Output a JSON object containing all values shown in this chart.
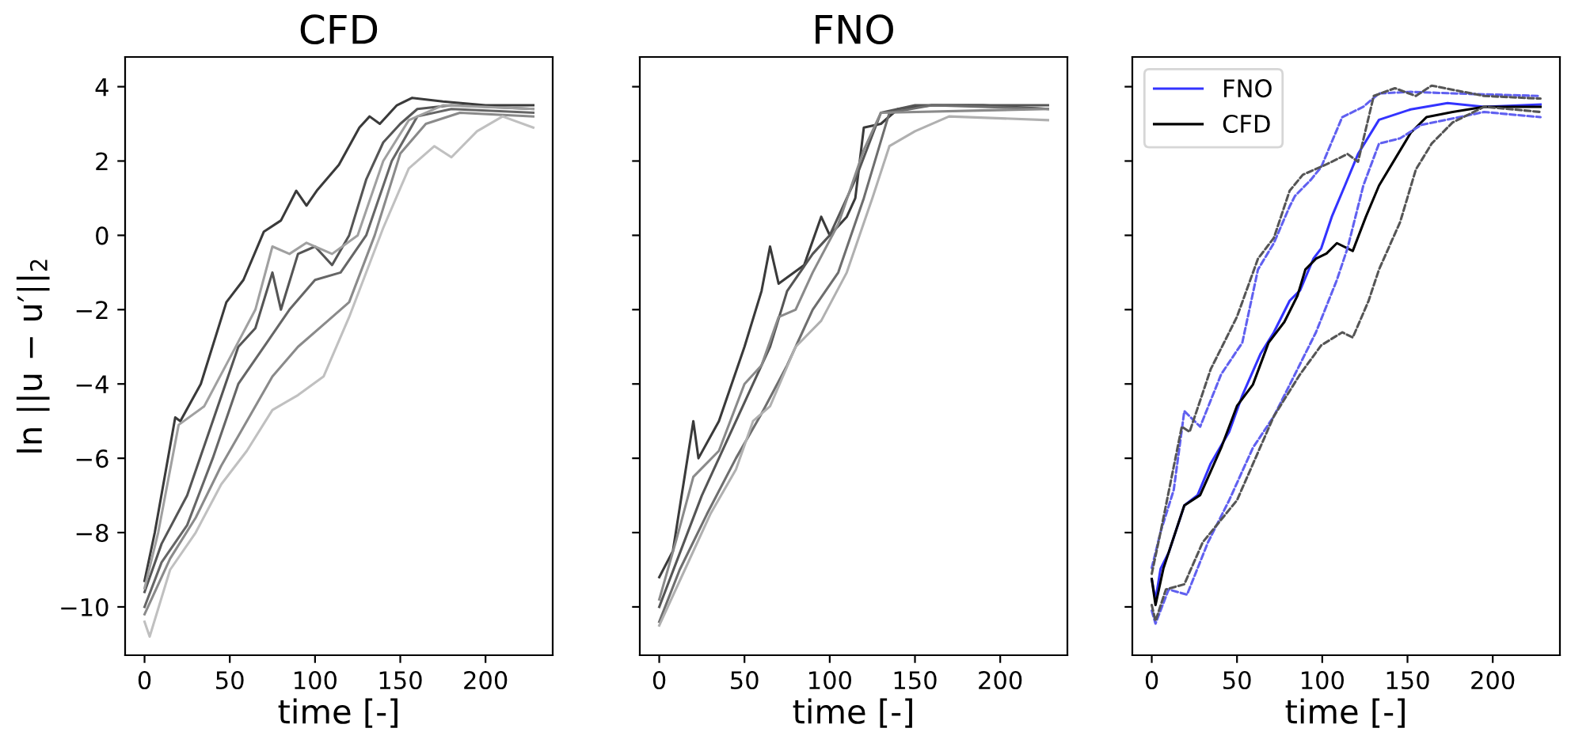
{
  "chart_data": [
    {
      "type": "line",
      "title": "CFD",
      "xlabel": "time [-]",
      "ylabel": "ln ||u − u′||$_{2}$",
      "xlim": [
        -11.4,
        239.4
      ],
      "ylim": [
        -11.3,
        4.8
      ],
      "xticks": [
        0,
        50,
        100,
        150,
        200
      ],
      "yticks": [
        -10,
        -8,
        -6,
        -4,
        -2,
        0,
        2,
        4
      ],
      "line_style": "solid",
      "marker": "none",
      "series": [
        {
          "color": "#3a3a3a",
          "x": [
            0,
            6,
            18,
            21,
            33,
            48,
            58,
            70,
            80,
            89,
            95,
            101,
            114,
            126,
            132,
            138,
            148,
            157,
            175,
            200,
            228
          ],
          "values": [
            -9.3,
            -8,
            -4.9,
            -5,
            -4,
            -1.8,
            -1.2,
            0.1,
            0.4,
            1.2,
            0.8,
            1.2,
            1.9,
            2.9,
            3.2,
            3,
            3.5,
            3.7,
            3.6,
            3.5,
            3.5
          ]
        },
        {
          "color": "#555555",
          "x": [
            0,
            10,
            25,
            40,
            55,
            65,
            75,
            80,
            90,
            100,
            110,
            120,
            130,
            140,
            150,
            160,
            180,
            228
          ],
          "values": [
            -9.6,
            -8.3,
            -7,
            -5,
            -3,
            -2.5,
            -1,
            -2,
            -0.5,
            -0.3,
            -0.8,
            0,
            1.5,
            2.5,
            3,
            3.4,
            3.5,
            3.4
          ]
        },
        {
          "color": "#666666",
          "x": [
            0,
            10,
            25,
            40,
            55,
            70,
            85,
            100,
            115,
            130,
            145,
            160,
            180,
            228
          ],
          "values": [
            -10,
            -8.8,
            -7.8,
            -6,
            -4,
            -3,
            -2,
            -1.2,
            -1,
            0,
            2,
            3.2,
            3.4,
            3.3
          ]
        },
        {
          "color": "#8a8a8a",
          "x": [
            0,
            15,
            30,
            45,
            60,
            75,
            90,
            105,
            120,
            135,
            150,
            165,
            185,
            228
          ],
          "values": [
            -10.2,
            -8.7,
            -7.6,
            -6.2,
            -5,
            -3.8,
            -3,
            -2.4,
            -1.8,
            0,
            2.2,
            3,
            3.3,
            3.2
          ]
        },
        {
          "color": "#c0c0c0",
          "x": [
            0,
            3,
            15,
            30,
            45,
            60,
            75,
            90,
            105,
            120,
            140,
            155,
            170,
            180,
            195,
            210,
            228
          ],
          "values": [
            -10.4,
            -10.8,
            -9,
            -8,
            -6.7,
            -5.8,
            -4.7,
            -4.3,
            -3.8,
            -2.2,
            0.2,
            1.8,
            2.4,
            2.1,
            2.8,
            3.2,
            2.9
          ]
        },
        {
          "color": "#a0a0a0",
          "x": [
            0,
            8,
            20,
            35,
            50,
            65,
            75,
            85,
            95,
            110,
            125,
            140,
            155,
            175,
            228
          ],
          "values": [
            -9.5,
            -8,
            -5.1,
            -4.6,
            -3.3,
            -2,
            -0.3,
            -0.5,
            -0.2,
            -0.5,
            0,
            2,
            3.1,
            3.5,
            3.4
          ]
        }
      ]
    },
    {
      "type": "line",
      "title": "FNO",
      "xlabel": "time [-]",
      "xlim": [
        -11.4,
        239.4
      ],
      "ylim": [
        -11.3,
        4.8
      ],
      "xticks": [
        0,
        50,
        100,
        150,
        200
      ],
      "yticks": [
        -10,
        -8,
        -6,
        -4,
        -2,
        0,
        2,
        4
      ],
      "tick_labels": "x",
      "line_style": "solid",
      "marker": "none",
      "series": [
        {
          "color": "#3a3a3a",
          "x": [
            0,
            8,
            20,
            23,
            35,
            50,
            60,
            65,
            70,
            85,
            95,
            100,
            110,
            115,
            120,
            130,
            140,
            160,
            190,
            228
          ],
          "values": [
            -9.2,
            -8.5,
            -5,
            -6,
            -5,
            -3,
            -1.5,
            -0.3,
            -1.3,
            -0.8,
            0.5,
            0,
            0.5,
            1,
            2.9,
            3,
            3.4,
            3.5,
            3.5,
            3.4
          ]
        },
        {
          "color": "#555555",
          "x": [
            0,
            10,
            25,
            40,
            55,
            65,
            75,
            90,
            100,
            115,
            130,
            150,
            228
          ],
          "values": [
            -10,
            -8.8,
            -7,
            -5.5,
            -4,
            -3,
            -1.5,
            -0.5,
            0,
            1.5,
            3.3,
            3.5,
            3.5
          ]
        },
        {
          "color": "#6e6e6e",
          "x": [
            0,
            12,
            28,
            45,
            60,
            75,
            90,
            105,
            120,
            135,
            160,
            228
          ],
          "values": [
            -10.4,
            -9,
            -7.5,
            -6,
            -4.8,
            -3.5,
            -2,
            -1,
            1,
            3.3,
            3.5,
            3.4
          ]
        },
        {
          "color": "#b0b0b0",
          "x": [
            0,
            15,
            30,
            45,
            55,
            65,
            80,
            95,
            110,
            125,
            135,
            150,
            170,
            228
          ],
          "values": [
            -10.5,
            -9,
            -7.5,
            -6.3,
            -5,
            -4.6,
            -3,
            -2.3,
            -1,
            1,
            2.4,
            2.8,
            3.2,
            3.1
          ]
        },
        {
          "color": "#8a8a8a",
          "x": [
            0,
            10,
            20,
            35,
            50,
            60,
            70,
            80,
            90,
            105,
            120,
            130,
            228
          ],
          "values": [
            -9.8,
            -8.2,
            -6.5,
            -5.8,
            -4,
            -3.5,
            -2.2,
            -2,
            -1,
            0.3,
            2.3,
            3.3,
            3.4
          ]
        }
      ]
    },
    {
      "type": "line",
      "xlabel": "time [-]",
      "xlim": [
        -11.4,
        239.4
      ],
      "ylim": [
        -11.3,
        4.8
      ],
      "xticks": [
        0,
        50,
        100,
        150,
        200
      ],
      "yticks": [
        -10,
        -8,
        -6,
        -4,
        -2,
        0,
        2,
        4
      ],
      "tick_labels": "x",
      "legend": "top left",
      "marker": "none",
      "series": [
        {
          "name": "FNO",
          "color": "#3333ff",
          "line_style": "solid",
          "x": [
            0,
            2.2,
            5.2,
            9.9,
            19.1,
            26.9,
            34.6,
            45.4,
            53.1,
            63.9,
            71.6,
            80.9,
            87,
            94.8,
            99.4,
            105.6,
            113.3,
            121,
            133.3,
            151.9,
            173.5,
            195,
            228
          ],
          "values": [
            -9.25,
            -9.81,
            -8.97,
            -8.54,
            -7.27,
            -6.99,
            -6.14,
            -5.29,
            -4.31,
            -3.18,
            -2.61,
            -1.76,
            -1.48,
            -0.63,
            -0.35,
            0.5,
            1.34,
            2.19,
            3.11,
            3.39,
            3.56,
            3.46,
            3.52
          ]
        },
        {
          "name": "CFD",
          "color": "#000000",
          "line_style": "solid",
          "x": [
            0,
            2.2,
            6.8,
            19.1,
            28.4,
            40.7,
            50,
            59.3,
            68.5,
            77.8,
            85.5,
            90.1,
            96.3,
            102.5,
            108.6,
            117.9,
            125.6,
            133.3,
            142.6,
            151.9,
            161.1,
            176.5,
            195,
            228
          ],
          "values": [
            -9.25,
            -9.95,
            -8.97,
            -7.27,
            -6.99,
            -5.72,
            -4.59,
            -4.02,
            -2.89,
            -2.33,
            -1.62,
            -0.92,
            -0.63,
            -0.49,
            -0.21,
            -0.42,
            0.5,
            1.34,
            2.05,
            2.76,
            3.18,
            3.32,
            3.46,
            3.46
          ]
        },
        {
          "color": "#6060f0",
          "line_style": "dashed",
          "x": [
            0,
            5.2,
            12.9,
            19.1,
            28.4,
            40.7,
            53.1,
            62.3,
            71.6,
            80.9,
            84,
            93.2,
            99.4,
            111.7,
            124.1,
            133.3,
            151.9,
            176.5,
            228
          ],
          "values": [
            -8.95,
            -7.98,
            -6.85,
            -4.73,
            -5.15,
            -3.74,
            -2.89,
            -0.92,
            -0.21,
            0.78,
            1.06,
            1.49,
            1.84,
            3.18,
            3.46,
            3.82,
            3.86,
            3.82,
            3.75
          ]
        },
        {
          "color": "#6060f0",
          "line_style": "dashed",
          "x": [
            0,
            2.2,
            9.9,
            20.7,
            33,
            45.4,
            59.3,
            71.6,
            84,
            96.3,
            108.6,
            114.8,
            124.1,
            133.3,
            145.7,
            158,
            195,
            228
          ],
          "values": [
            -10.1,
            -10.45,
            -9.53,
            -9.67,
            -8.26,
            -7.13,
            -5.72,
            -4.87,
            -3.74,
            -2.61,
            -1.2,
            -0.35,
            1.34,
            2.47,
            2.61,
            2.97,
            3.32,
            3.18
          ]
        },
        {
          "color": "#555555",
          "line_style": "dashed",
          "x": [
            0,
            5.2,
            17.6,
            22.2,
            34.6,
            50,
            62.3,
            71.6,
            80.9,
            88.6,
            102.5,
            114.8,
            121,
            130.2,
            142.6,
            154.9,
            164.2,
            179.6,
            195,
            228
          ],
          "values": [
            -9.11,
            -7.98,
            -5.15,
            -5.29,
            -3.6,
            -2.19,
            -0.63,
            -0.07,
            1.2,
            1.63,
            1.91,
            2.19,
            1.98,
            3.75,
            3.96,
            3.75,
            4.03,
            3.89,
            3.75,
            3.68
          ]
        },
        {
          "color": "#555555",
          "line_style": "dashed",
          "x": [
            0,
            2.2,
            8.3,
            19.1,
            29.9,
            50,
            71.6,
            87,
            99.4,
            111.7,
            117.9,
            127.2,
            133.3,
            145.7,
            154.9,
            164.2,
            176.5,
            195,
            228
          ],
          "values": [
            -9.95,
            -10.38,
            -9.53,
            -9.39,
            -8.26,
            -7.13,
            -4.87,
            -3.74,
            -2.96,
            -2.61,
            -2.75,
            -1.76,
            -0.92,
            0.36,
            1.77,
            2.47,
            3.04,
            3.46,
            3.32
          ]
        }
      ]
    }
  ]
}
